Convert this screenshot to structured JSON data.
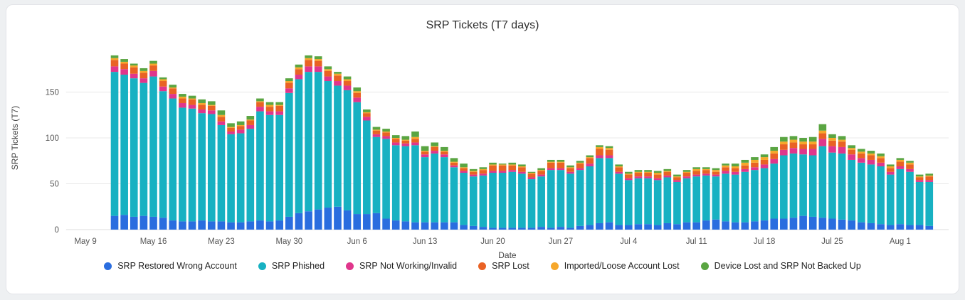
{
  "chart_data": {
    "type": "bar",
    "stacked": true,
    "title": "SRP Tickets (T7 days)",
    "xlabel": "Date",
    "ylabel": "SRP Tickets (T7)",
    "axis": {
      "ylim": [
        0,
        200
      ],
      "y_ticks": [
        0,
        50,
        100,
        150
      ],
      "x_ticks": [
        {
          "label": "May 9",
          "day": 0
        },
        {
          "label": "May 16",
          "day": 7
        },
        {
          "label": "May 23",
          "day": 14
        },
        {
          "label": "May 30",
          "day": 21
        },
        {
          "label": "Jun 6",
          "day": 28
        },
        {
          "label": "Jun 13",
          "day": 35
        },
        {
          "label": "Jun 20",
          "day": 42
        },
        {
          "label": "Jun 27",
          "day": 49
        },
        {
          "label": "Jul 4",
          "day": 56
        },
        {
          "label": "Jul 11",
          "day": 63
        },
        {
          "label": "Jul 18",
          "day": 70
        },
        {
          "label": "Jul 25",
          "day": 77
        },
        {
          "label": "Aug 1",
          "day": 84
        }
      ],
      "bar_start_day": 3,
      "day_min": -2,
      "day_max": 89,
      "grid": true,
      "legend_position": "bottom"
    },
    "x": [
      "May 12",
      "May 13",
      "May 14",
      "May 15",
      "May 16",
      "May 17",
      "May 18",
      "May 19",
      "May 20",
      "May 21",
      "May 22",
      "May 23",
      "May 24",
      "May 25",
      "May 26",
      "May 27",
      "May 28",
      "May 29",
      "May 30",
      "May 31",
      "Jun 1",
      "Jun 2",
      "Jun 3",
      "Jun 4",
      "Jun 5",
      "Jun 6",
      "Jun 7",
      "Jun 8",
      "Jun 9",
      "Jun 10",
      "Jun 11",
      "Jun 12",
      "Jun 13",
      "Jun 14",
      "Jun 15",
      "Jun 16",
      "Jun 17",
      "Jun 18",
      "Jun 19",
      "Jun 20",
      "Jun 21",
      "Jun 22",
      "Jun 23",
      "Jun 24",
      "Jun 25",
      "Jun 26",
      "Jun 27",
      "Jun 28",
      "Jun 29",
      "Jun 30",
      "Jul 1",
      "Jul 2",
      "Jul 3",
      "Jul 4",
      "Jul 5",
      "Jul 6",
      "Jul 7",
      "Jul 8",
      "Jul 9",
      "Jul 10",
      "Jul 11",
      "Jul 12",
      "Jul 13",
      "Jul 14",
      "Jul 15",
      "Jul 16",
      "Jul 17",
      "Jul 18",
      "Jul 19",
      "Jul 20",
      "Jul 21",
      "Jul 22",
      "Jul 23",
      "Jul 24",
      "Jul 25",
      "Jul 26",
      "Jul 27",
      "Jul 28",
      "Jul 29",
      "Jul 30",
      "Jul 31",
      "Aug 1",
      "Aug 2",
      "Aug 3",
      "Aug 4"
    ],
    "series": [
      {
        "name": "SRP Restored Wrong Account",
        "color": "#2a6ddf",
        "values": [
          15,
          16,
          14,
          15,
          14,
          13,
          10,
          9,
          9,
          10,
          9,
          9,
          8,
          8,
          9,
          10,
          9,
          10,
          14,
          18,
          20,
          22,
          24,
          25,
          21,
          17,
          17,
          18,
          12,
          10,
          9,
          8,
          8,
          8,
          8,
          8,
          5,
          4,
          3,
          2,
          2,
          2,
          2,
          2,
          3,
          2,
          3,
          2,
          4,
          5,
          7,
          8,
          5,
          5,
          6,
          6,
          5,
          7,
          6,
          8,
          8,
          10,
          11,
          9,
          8,
          8,
          9,
          10,
          12,
          12,
          13,
          15,
          14,
          13,
          12,
          11,
          10,
          8,
          7,
          6,
          5,
          6,
          5,
          5,
          4
        ]
      },
      {
        "name": "SRP Phished",
        "color": "#17b1c2",
        "values": [
          157,
          153,
          151,
          145,
          153,
          138,
          133,
          124,
          123,
          117,
          117,
          105,
          96,
          97,
          101,
          119,
          116,
          115,
          135,
          146,
          152,
          150,
          138,
          132,
          131,
          122,
          102,
          83,
          87,
          82,
          82,
          84,
          71,
          75,
          71,
          60,
          57,
          54,
          56,
          60,
          60,
          61,
          59,
          53,
          55,
          63,
          62,
          59,
          61,
          64,
          71,
          70,
          56,
          49,
          50,
          50,
          49,
          50,
          46,
          48,
          50,
          49,
          47,
          52,
          52,
          55,
          56,
          57,
          60,
          69,
          70,
          67,
          67,
          78,
          72,
          72,
          66,
          65,
          64,
          63,
          55,
          60,
          58,
          47,
          48
        ]
      },
      {
        "name": "SRP Not Working/Invalid",
        "color": "#e0368c",
        "values": [
          6,
          6,
          5,
          5,
          6,
          5,
          5,
          5,
          4,
          4,
          4,
          4,
          3,
          4,
          4,
          5,
          4,
          4,
          5,
          5,
          6,
          6,
          5,
          5,
          5,
          5,
          4,
          3,
          3,
          3,
          3,
          3,
          3,
          3,
          3,
          2,
          2,
          2,
          2,
          2,
          2,
          2,
          2,
          2,
          2,
          2,
          2,
          2,
          2,
          3,
          3,
          3,
          2,
          2,
          2,
          2,
          2,
          2,
          2,
          2,
          2,
          2,
          2,
          3,
          3,
          3,
          3,
          4,
          5,
          6,
          6,
          6,
          7,
          8,
          7,
          7,
          6,
          5,
          5,
          4,
          3,
          3,
          3,
          2,
          2
        ]
      },
      {
        "name": "SRP Lost",
        "color": "#e96224",
        "values": [
          7,
          6,
          7,
          6,
          6,
          6,
          6,
          5,
          6,
          5,
          5,
          5,
          4,
          4,
          5,
          5,
          5,
          6,
          6,
          6,
          7,
          6,
          6,
          6,
          5,
          5,
          4,
          4,
          4,
          4,
          3,
          4,
          3,
          4,
          3,
          3,
          3,
          3,
          4,
          6,
          6,
          5,
          5,
          4,
          4,
          6,
          6,
          4,
          5,
          6,
          7,
          6,
          5,
          4,
          4,
          4,
          4,
          4,
          3,
          4,
          4,
          4,
          3,
          4,
          4,
          4,
          5,
          5,
          6,
          6,
          6,
          5,
          5,
          6,
          6,
          6,
          5,
          5,
          5,
          5,
          4,
          5,
          5,
          3,
          4
        ]
      },
      {
        "name": "Imported/Loose Account Lost",
        "color": "#f6a72b",
        "values": [
          2,
          2,
          2,
          2,
          2,
          2,
          1,
          2,
          1,
          2,
          1,
          2,
          1,
          1,
          1,
          1,
          2,
          1,
          2,
          2,
          2,
          2,
          2,
          2,
          2,
          2,
          1,
          1,
          1,
          1,
          1,
          2,
          1,
          1,
          1,
          1,
          1,
          1,
          1,
          1,
          1,
          1,
          1,
          1,
          1,
          1,
          1,
          1,
          1,
          1,
          2,
          2,
          1,
          1,
          1,
          1,
          2,
          1,
          1,
          1,
          2,
          1,
          2,
          2,
          2,
          3,
          3,
          3,
          3,
          3,
          3,
          3,
          3,
          3,
          3,
          2,
          2,
          2,
          2,
          2,
          2,
          2,
          2,
          1,
          1
        ]
      },
      {
        "name": "Device Lost and SRP Not Backed Up",
        "color": "#5aa542",
        "values": [
          3,
          3,
          2,
          3,
          3,
          2,
          3,
          3,
          3,
          4,
          4,
          5,
          4,
          4,
          4,
          3,
          3,
          3,
          3,
          3,
          3,
          3,
          3,
          2,
          3,
          4,
          3,
          3,
          3,
          3,
          4,
          6,
          5,
          4,
          4,
          4,
          4,
          2,
          2,
          2,
          1,
          2,
          2,
          1,
          2,
          2,
          2,
          2,
          2,
          2,
          2,
          2,
          2,
          2,
          2,
          2,
          2,
          2,
          2,
          2,
          2,
          2,
          2,
          2,
          3,
          3,
          3,
          3,
          4,
          5,
          4,
          4,
          5,
          7,
          4,
          4,
          3,
          3,
          3,
          3,
          2,
          2,
          2,
          2,
          2
        ]
      }
    ]
  }
}
